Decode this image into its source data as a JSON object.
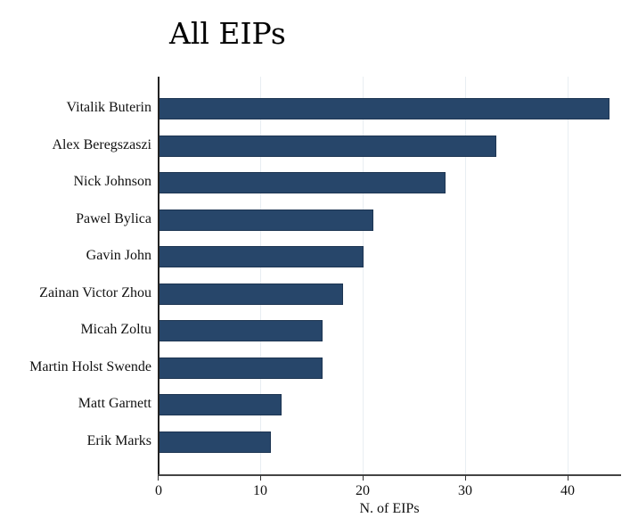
{
  "chart_data": {
    "type": "bar",
    "orientation": "horizontal",
    "title": "All EIPs",
    "xlabel": "N. of EIPs",
    "ylabel": "",
    "categories": [
      "Vitalik Buterin",
      "Alex Beregszaszi",
      "Nick Johnson",
      "Pawel Bylica",
      "Gavin John",
      "Zainan Victor Zhou",
      "Micah Zoltu",
      "Martin Holst Swende",
      "Matt Garnett",
      "Erik Marks"
    ],
    "values": [
      44,
      33,
      28,
      21,
      20,
      18,
      16,
      16,
      12,
      11
    ],
    "xlim": [
      0,
      45
    ],
    "xticks": [
      "0",
      "10",
      "20",
      "30",
      "40"
    ],
    "grid": "vertical",
    "legend": null,
    "bar_color": "#27466a"
  }
}
